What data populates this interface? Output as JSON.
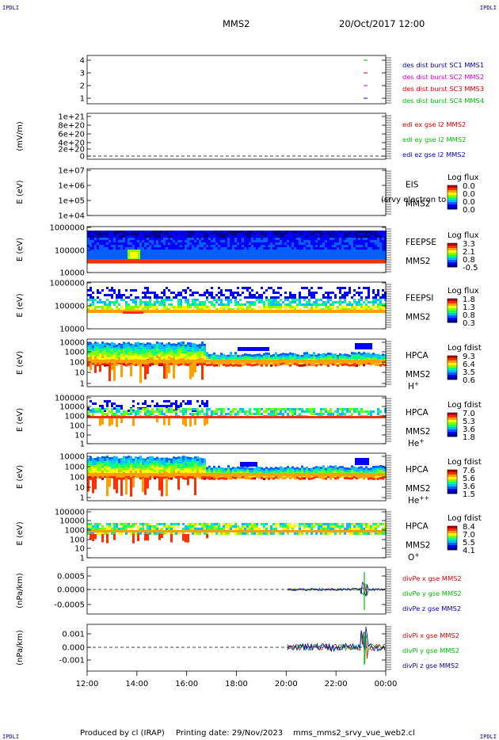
{
  "header": {
    "corner_label": "IPDLI",
    "spacecraft": "MMS2",
    "datetime": "20/Oct/2017 12:00"
  },
  "footer": {
    "produced_by": "Produced by cl (IRAP)",
    "printing_date": "Printing date: 29/Nov/2023",
    "filename": "mms_mms2_srvy_vue_web2.cl"
  },
  "colors": {
    "mms1": "#0000cc",
    "mms2": "#e000e0",
    "mms3": "#e00000",
    "mms4": "#00c000",
    "x": "#e00000",
    "y": "#00c000",
    "z": "#0000cc"
  },
  "chart_data": [
    {
      "id": "des",
      "type": "scatter",
      "yticks": [
        "4",
        "3",
        "2",
        "1"
      ],
      "legend": [
        {
          "label": "des dist burst SC1 MMS1",
          "color": "mms1"
        },
        {
          "label": "des dist burst SC2 MMS2",
          "color": "mms2"
        },
        {
          "label": "des dist burst SC3 MMS3",
          "color": "mms3"
        },
        {
          "label": "des dist burst SC4 MMS4",
          "color": "mms4"
        }
      ]
    },
    {
      "id": "edi",
      "type": "line",
      "ylabel": "(mV/m)",
      "yticks": [
        "1e+21",
        "8e+20",
        "6e+20",
        "4e+20",
        "2e+20",
        "0"
      ],
      "legend": [
        {
          "label": "edi ex gse l2 MMS2",
          "color": "x"
        },
        {
          "label": "edi ey gse l2 MMS2",
          "color": "y"
        },
        {
          "label": "edi ez gse l2 MMS2",
          "color": "z"
        }
      ]
    },
    {
      "id": "eis",
      "type": "heatmap",
      "ylabel": "E (eV)",
      "yticks": [
        "1e+07",
        "1e+06",
        "1e+05",
        "1e+04"
      ],
      "instrument": "EIS",
      "overlap_text": "(srvy electron to",
      "sc": "MMS2",
      "cbar_title": "Log flux",
      "cbar_ticks": [
        "0.0",
        "0.0",
        "0.0",
        "0.0"
      ]
    },
    {
      "id": "feepse",
      "type": "heatmap",
      "ylabel": "E (eV)",
      "yticks": [
        "1000000",
        "100000",
        "10000"
      ],
      "instrument": "FEEPSE",
      "sc": "MMS2",
      "cbar_title": "Log flux",
      "cbar_ticks": [
        "3.3",
        "2.1",
        "0.8",
        "-0.5"
      ]
    },
    {
      "id": "feepsi",
      "type": "heatmap",
      "ylabel": "E (eV)",
      "yticks": [
        "1000000",
        "100000",
        "10000"
      ],
      "instrument": "FEEPSI",
      "sc": "MMS2",
      "cbar_title": "Log flux",
      "cbar_ticks": [
        "1.8",
        "1.3",
        "0.8",
        "0.3"
      ]
    },
    {
      "id": "hpca_h",
      "type": "heatmap",
      "ylabel": "E (eV)",
      "yticks": [
        "10000",
        "1000",
        "100",
        "10",
        "1"
      ],
      "instrument": "HPCA",
      "sc": "MMS2",
      "species": "H",
      "species_sup": "+",
      "cbar_title": "Log fdist",
      "cbar_ticks": [
        "9.3",
        "6.4",
        "3.5",
        "0.6"
      ]
    },
    {
      "id": "hpca_he",
      "type": "heatmap",
      "ylabel": "E (eV)",
      "yticks": [
        "100000",
        "10000",
        "1000",
        "100",
        "10",
        "1"
      ],
      "instrument": "HPCA",
      "sc": "MMS2",
      "species": "He",
      "species_sup": "+",
      "cbar_title": "Log fdist",
      "cbar_ticks": [
        "7.0",
        "5.3",
        "3.6",
        "1.8"
      ]
    },
    {
      "id": "hpca_hepp",
      "type": "heatmap",
      "ylabel": "E (eV)",
      "yticks": [
        "10000",
        "1000",
        "100",
        "10",
        "1"
      ],
      "instrument": "HPCA",
      "sc": "MMS2",
      "species": "He",
      "species_sup": "++",
      "cbar_title": "Log fdist",
      "cbar_ticks": [
        "7.6",
        "5.6",
        "3.6",
        "1.5"
      ]
    },
    {
      "id": "hpca_o",
      "type": "heatmap",
      "ylabel": "E (eV)",
      "yticks": [
        "100000",
        "10000",
        "1000",
        "100",
        "10",
        "1"
      ],
      "instrument": "HPCA",
      "sc": "MMS2",
      "species": "O",
      "species_sup": "+",
      "cbar_title": "Log fdist",
      "cbar_ticks": [
        "8.4",
        "7.0",
        "5.5",
        "4.1"
      ]
    },
    {
      "id": "divpe",
      "type": "line",
      "ylabel": "(nPa/km)",
      "yticks": [
        "0.0005",
        "0.0000",
        "-0.0005"
      ],
      "legend": [
        {
          "label": "divPe x gse MMS2",
          "color": "x"
        },
        {
          "label": "divPe y gse MMS2",
          "color": "y"
        },
        {
          "label": "divPe z gse MMS2",
          "color": "z"
        }
      ]
    },
    {
      "id": "divpi",
      "type": "line",
      "ylabel": "(nPa/km)",
      "yticks": [
        "0.001",
        "0.000",
        "-0.001"
      ],
      "legend": [
        {
          "label": "divPi x gse MMS2",
          "color": "x"
        },
        {
          "label": "divPi y gse MMS2",
          "color": "y"
        },
        {
          "label": "divPi z gse MMS2",
          "color": "z"
        }
      ]
    }
  ],
  "time_axis": {
    "ticks": [
      "12:00",
      "14:00",
      "16:00",
      "18:00",
      "20:00",
      "22:00",
      "00:00"
    ]
  }
}
